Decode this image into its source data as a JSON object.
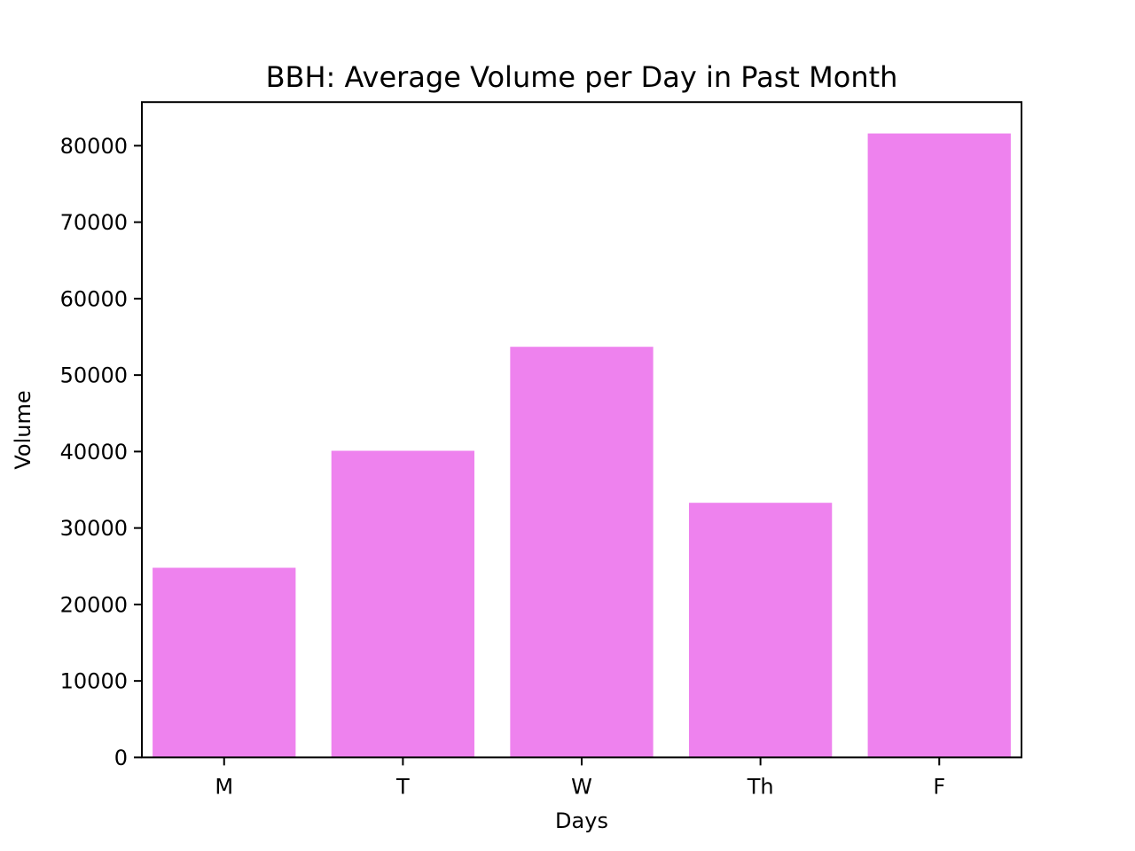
{
  "chart_data": {
    "type": "bar",
    "title": "BBH: Average Volume per Day in Past Month",
    "xlabel": "Days",
    "ylabel": "Volume",
    "categories": [
      "M",
      "T",
      "W",
      "Th",
      "F"
    ],
    "values": [
      24800,
      40100,
      53700,
      33300,
      81600
    ],
    "ylim": [
      0,
      85700
    ],
    "yticks": [
      0,
      10000,
      20000,
      30000,
      40000,
      50000,
      60000,
      70000,
      80000
    ],
    "bar_color": "#ee82ee",
    "grid": false,
    "legend": "none"
  }
}
